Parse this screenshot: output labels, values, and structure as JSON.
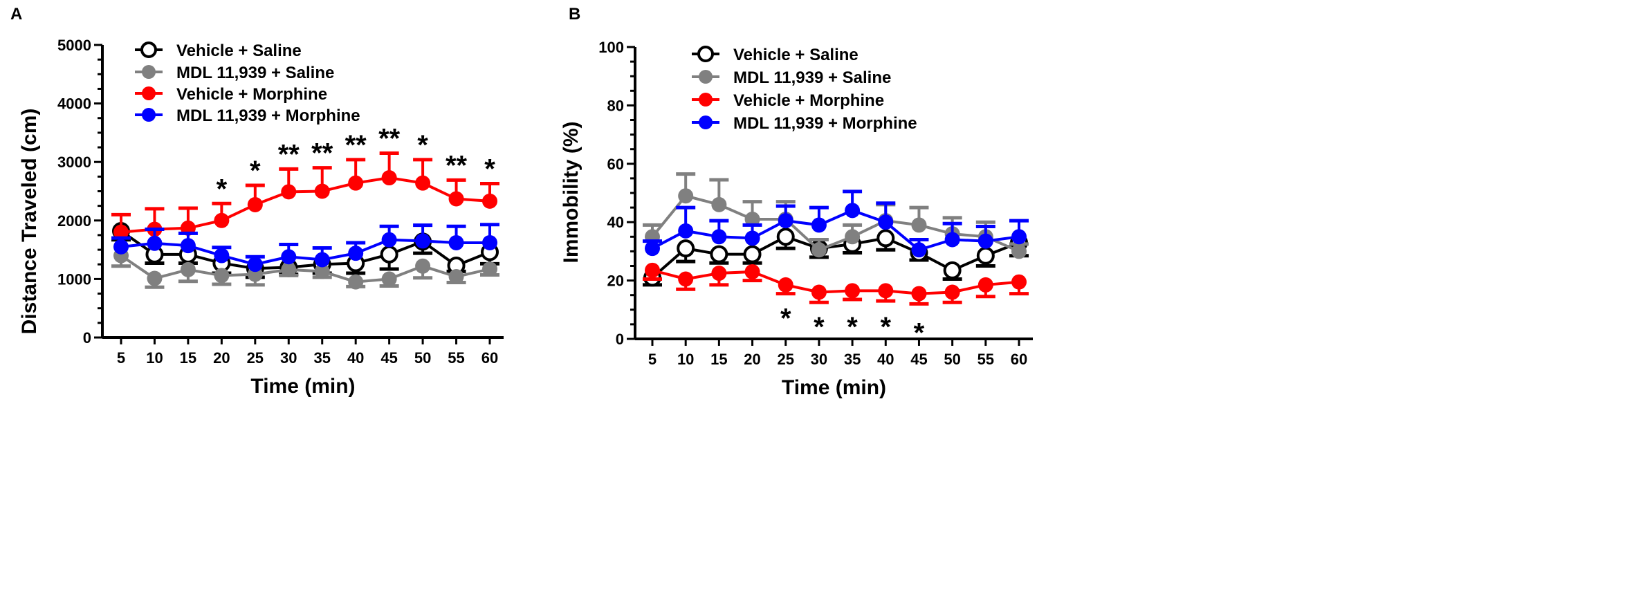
{
  "chart_data": [
    {
      "type": "line",
      "panel_label": "A",
      "xlabel": "Time (min)",
      "ylabel": "Distance Traveled (cm)",
      "x": [
        5,
        10,
        15,
        20,
        25,
        30,
        35,
        40,
        45,
        50,
        55,
        60
      ],
      "xtick_labels": [
        "5",
        "10",
        "15",
        "20",
        "25",
        "30",
        "35",
        "40",
        "45",
        "50",
        "55",
        "60"
      ],
      "ylim": [
        0,
        5000
      ],
      "ytick_labels": [
        "0",
        "1000",
        "2000",
        "3000",
        "4000",
        "5000"
      ],
      "yticks": [
        0,
        1000,
        2000,
        3000,
        4000,
        5000
      ],
      "legend_placement": "top-left",
      "series": [
        {
          "name": "Vehicle + Saline",
          "color": "#000000",
          "hollow": true,
          "values": [
            1820,
            1420,
            1420,
            1270,
            1180,
            1200,
            1250,
            1270,
            1420,
            1640,
            1230,
            1460
          ],
          "sem": [
            150,
            150,
            150,
            170,
            150,
            120,
            150,
            170,
            250,
            200,
            100,
            200
          ],
          "err_dir": "down"
        },
        {
          "name": "MDL 11,939 + Saline",
          "color": "#808080",
          "hollow": false,
          "values": [
            1400,
            1010,
            1160,
            1060,
            1080,
            1160,
            1130,
            950,
            1000,
            1220,
            1040,
            1170
          ],
          "sem": [
            180,
            150,
            200,
            150,
            180,
            100,
            100,
            80,
            120,
            200,
            100,
            100
          ],
          "err_dir": "down"
        },
        {
          "name": "Vehicle + Morphine",
          "color": "#ff0000",
          "hollow": false,
          "values": [
            1800,
            1850,
            1870,
            2000,
            2270,
            2490,
            2500,
            2640,
            2730,
            2640,
            2370,
            2330
          ],
          "sem": [
            300,
            350,
            340,
            290,
            330,
            390,
            400,
            400,
            420,
            400,
            320,
            300
          ],
          "err_dir": "up"
        },
        {
          "name": "MDL 11,939 + Morphine",
          "color": "#0000ff",
          "hollow": false,
          "values": [
            1550,
            1610,
            1570,
            1400,
            1250,
            1380,
            1330,
            1440,
            1670,
            1650,
            1620,
            1620
          ],
          "sem": [
            150,
            240,
            210,
            140,
            130,
            210,
            200,
            180,
            230,
            270,
            280,
            310
          ],
          "err_dir": "up"
        }
      ],
      "annotations": [
        {
          "x": 20,
          "text": "*",
          "y": 2290
        },
        {
          "x": 25,
          "text": "*",
          "y": 2600
        },
        {
          "x": 30,
          "text": "**",
          "y": 2880
        },
        {
          "x": 35,
          "text": "**",
          "y": 2900
        },
        {
          "x": 40,
          "text": "**",
          "y": 3040
        },
        {
          "x": 45,
          "text": "**",
          "y": 3150
        },
        {
          "x": 50,
          "text": "*",
          "y": 3040
        },
        {
          "x": 55,
          "text": "**",
          "y": 2690
        },
        {
          "x": 60,
          "text": "*",
          "y": 2630
        }
      ]
    },
    {
      "type": "line",
      "panel_label": "B",
      "xlabel": "Time (min)",
      "ylabel": "Immobility (%)",
      "x": [
        5,
        10,
        15,
        20,
        25,
        30,
        35,
        40,
        45,
        50,
        55,
        60
      ],
      "xtick_labels": [
        "5",
        "10",
        "15",
        "20",
        "25",
        "30",
        "35",
        "40",
        "45",
        "50",
        "55",
        "60"
      ],
      "ylim": [
        0,
        100
      ],
      "ytick_labels": [
        "0",
        "20",
        "40",
        "60",
        "80",
        "100"
      ],
      "yticks": [
        0,
        20,
        40,
        60,
        80,
        100
      ],
      "legend_placement": "top-left",
      "series": [
        {
          "name": "Vehicle + Saline",
          "color": "#000000",
          "hollow": true,
          "values": [
            21,
            31,
            29,
            29,
            35,
            31,
            32.5,
            34.5,
            29.5,
            23.5,
            28.5,
            33
          ],
          "sem": [
            2.5,
            4.5,
            3,
            3,
            4,
            3,
            3,
            4,
            2.5,
            3,
            3.5,
            4.5
          ],
          "err_dir": "down"
        },
        {
          "name": "MDL 11,939 + Saline",
          "color": "#808080",
          "hollow": false,
          "values": [
            35,
            49,
            46,
            41,
            41,
            30.5,
            35,
            40.5,
            39,
            36,
            35,
            30
          ],
          "sem": [
            4,
            7.5,
            8.5,
            6,
            6,
            3.5,
            4,
            5.5,
            6,
            5.5,
            5,
            2.5
          ],
          "err_dir": "up"
        },
        {
          "name": "Vehicle + Morphine",
          "color": "#ff0000",
          "hollow": false,
          "values": [
            23.5,
            20.5,
            22.5,
            23,
            18.5,
            16,
            16.5,
            16.5,
            15.5,
            16,
            18.5,
            19.5
          ],
          "sem": [
            3,
            3.5,
            4,
            3,
            3,
            3.5,
            3,
            3.5,
            3.5,
            3.5,
            4,
            4
          ],
          "err_dir": "down"
        },
        {
          "name": "MDL 11,939 + Morphine",
          "color": "#0000ff",
          "hollow": false,
          "values": [
            31,
            37,
            35,
            34.5,
            40.5,
            39,
            44,
            40,
            30.5,
            34,
            33.5,
            35
          ],
          "sem": [
            2.5,
            8,
            5.5,
            4.5,
            5,
            6,
            6.5,
            6.5,
            3.5,
            5.5,
            5,
            5.5
          ],
          "err_dir": "up"
        }
      ],
      "annotations": [
        {
          "x": 25,
          "text": "*",
          "y": 11
        },
        {
          "x": 30,
          "text": "*",
          "y": 8
        },
        {
          "x": 35,
          "text": "*",
          "y": 8
        },
        {
          "x": 40,
          "text": "*",
          "y": 8
        },
        {
          "x": 45,
          "text": "*",
          "y": 6
        }
      ]
    }
  ]
}
